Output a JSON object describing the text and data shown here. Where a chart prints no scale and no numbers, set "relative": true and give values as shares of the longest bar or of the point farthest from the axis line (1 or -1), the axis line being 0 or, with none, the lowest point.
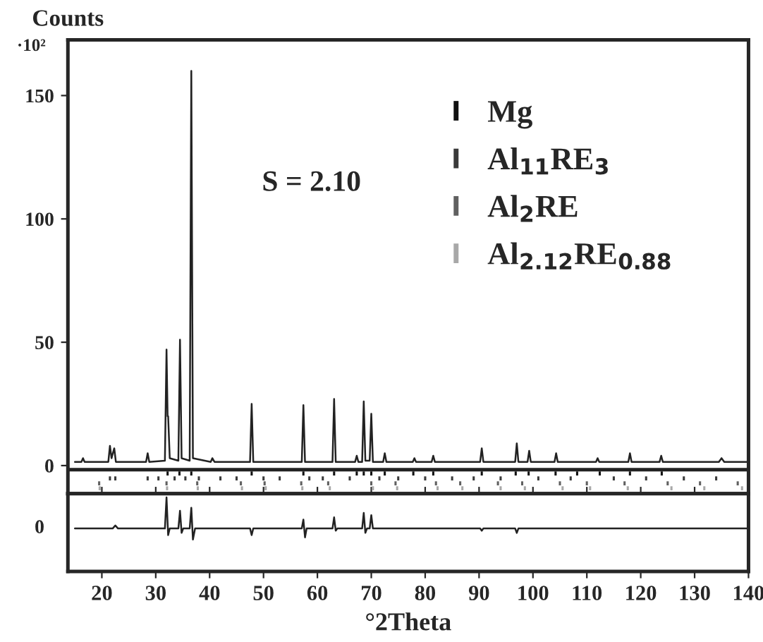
{
  "chart_data": [
    {
      "type": "line",
      "ylabel": "Counts",
      "annotations": [
        "·10²",
        "S = 2.10"
      ],
      "xlim": [
        13.7,
        140
      ],
      "xticks": [
        20,
        30,
        40,
        50,
        60,
        70,
        80,
        90,
        100,
        110,
        120,
        130,
        140
      ],
      "ylim": [
        -11.4,
        172.6
      ],
      "yticks": [
        0,
        50,
        100,
        150
      ],
      "tick_labels": "y",
      "grid": false,
      "legend": "top right",
      "ref_lines": [
        {
          "axis": "y",
          "value": -1.7,
          "color": "#222222"
        }
      ],
      "series": [
        {
          "color": "#222222",
          "x": [
            15,
            16.2,
            16.5,
            16.8,
            21.2,
            21.5,
            21.8,
            22.3,
            22.6,
            28.2,
            28.5,
            28.8,
            31.7,
            32.0,
            32.2,
            32.3,
            32.6,
            34.2,
            34.5,
            34.8,
            36.3,
            36.6,
            36.9,
            40.2,
            40.5,
            40.9,
            47.5,
            47.8,
            48.1,
            57.1,
            57.4,
            57.7,
            62.8,
            63.1,
            63.4,
            67.0,
            67.3,
            67.6,
            68.3,
            68.6,
            68.9,
            69.7,
            70.0,
            70.3,
            72.2,
            72.5,
            72.8,
            77.7,
            78.0,
            78.3,
            81.2,
            81.5,
            81.8,
            90.2,
            90.5,
            90.8,
            96.7,
            97.0,
            97.3,
            99.0,
            99.3,
            99.6,
            104.0,
            104.3,
            104.6,
            111.7,
            112.0,
            112.3,
            117.7,
            118.0,
            118.3,
            123.5,
            123.8,
            124.1,
            134.5,
            135.0,
            135.5,
            140
          ],
          "values": [
            1.5,
            1.5,
            3,
            1.5,
            1.5,
            8,
            3,
            7,
            1.5,
            1.5,
            5,
            1.5,
            2,
            47,
            20,
            20,
            3,
            2,
            51,
            3,
            2,
            160,
            3,
            1.5,
            3,
            1.5,
            1.5,
            25,
            1.5,
            1.5,
            24.5,
            1.5,
            1.5,
            27,
            1.5,
            1.5,
            4,
            1.5,
            1.5,
            26,
            2,
            2,
            21,
            1.5,
            1.5,
            5,
            1.5,
            1.5,
            3,
            1.5,
            1.5,
            4,
            1.5,
            1.5,
            7,
            1.5,
            1.5,
            9,
            1.5,
            1.5,
            6,
            1.5,
            1.5,
            5,
            1.5,
            1.5,
            3,
            1.5,
            1.5,
            5,
            1.5,
            1.5,
            4,
            1.5,
            1.5,
            3,
            1.5,
            1.5
          ]
        },
        {
          "type": "bar",
          "name": "Mg",
          "color": "#111111",
          "x": [
            32.2,
            34.4,
            36.6,
            47.8,
            57.4,
            63.1,
            67.3,
            68.6,
            70.0,
            72.5,
            77.8,
            81.5,
            90.5,
            96.8,
            99.2,
            104.2,
            108.2,
            112.4,
            118.0,
            123.9
          ],
          "base": [
            -4,
            -4,
            -4,
            -4,
            -4,
            -4,
            -4,
            -4,
            -4,
            -4,
            -4,
            -4,
            -4,
            -4,
            -4,
            -4,
            -4,
            -4,
            -4,
            -4
          ],
          "values": [
            1.6,
            1.6,
            1.6,
            1.6,
            1.6,
            1.6,
            1.6,
            1.6,
            1.6,
            1.6,
            1.6,
            1.6,
            1.6,
            1.6,
            1.6,
            1.6,
            1.6,
            1.6,
            1.6,
            1.6
          ]
        },
        {
          "type": "bar",
          "name": "Al$_{11}$RE$_{3}$",
          "color": "#3a3a3a",
          "x": [
            21.5,
            22.5,
            28.5,
            30.5,
            33.5,
            35.5,
            38.0,
            42.0,
            45.0,
            50.0,
            53.0,
            58.5,
            61.0,
            66.0,
            71.5,
            75.0,
            80.0,
            85.0,
            89.0,
            94.0,
            101.0,
            107.0,
            115.0,
            121.0,
            128.0,
            134.0
          ],
          "base": [
            -6,
            -6,
            -6,
            -6,
            -6,
            -6,
            -6,
            -6,
            -6,
            -6,
            -6,
            -6,
            -6,
            -6,
            -6,
            -6,
            -6,
            -6,
            -6,
            -6,
            -6,
            -6,
            -6,
            -6,
            -6,
            -6
          ],
          "values": [
            1.6,
            1.6,
            1.6,
            1.6,
            1.6,
            1.6,
            1.6,
            1.6,
            1.6,
            1.6,
            1.6,
            1.6,
            1.6,
            1.6,
            1.6,
            1.6,
            1.6,
            1.6,
            1.6,
            1.6,
            1.6,
            1.6,
            1.6,
            1.6,
            1.6,
            1.6
          ]
        },
        {
          "type": "bar",
          "name": "Al$_{2}$RE",
          "color": "#606060",
          "x": [
            19.5,
            32.0,
            37.7,
            45.8,
            50.2,
            57.0,
            62.0,
            70.0,
            74.5,
            82.0,
            86.5,
            93.5,
            98.0,
            105.0,
            110.0,
            117.0,
            125.0,
            131.0,
            138.0
          ],
          "base": [
            -8,
            -8,
            -8,
            -8,
            -8,
            -8,
            -8,
            -8,
            -8,
            -8,
            -8,
            -8,
            -8,
            -8,
            -8,
            -8,
            -8,
            -8,
            -8
          ],
          "values": [
            1.6,
            1.6,
            1.6,
            1.6,
            1.6,
            1.6,
            1.6,
            1.6,
            1.6,
            1.6,
            1.6,
            1.6,
            1.6,
            1.6,
            1.6,
            1.6,
            1.6,
            1.6,
            1.6
          ]
        },
        {
          "type": "bar",
          "name": "Al$_{2.12}$RE$_{0.88}$",
          "color": "#a8a8a8",
          "x": [
            19.6,
            32.1,
            37.8,
            46.0,
            50.4,
            57.2,
            62.3,
            70.3,
            74.8,
            82.3,
            86.9,
            94.0,
            98.5,
            105.5,
            110.6,
            117.6,
            125.7,
            131.8,
            138.8
          ],
          "base": [
            -10,
            -10,
            -10,
            -10,
            -10,
            -10,
            -10,
            -10,
            -10,
            -10,
            -10,
            -10,
            -10,
            -10,
            -10,
            -10,
            -10,
            -10,
            -10
          ],
          "values": [
            1.6,
            1.6,
            1.6,
            1.6,
            1.6,
            1.6,
            1.6,
            1.6,
            1.6,
            1.6,
            1.6,
            1.6,
            1.6,
            1.6,
            1.6,
            1.6,
            1.6,
            1.6,
            1.6
          ]
        }
      ]
    },
    {
      "type": "line",
      "xlabel": "°2Theta",
      "xlim": [
        13.7,
        140
      ],
      "relative": true,
      "annotations": [
        "0"
      ],
      "xticks": [
        20,
        30,
        40,
        50,
        60,
        70,
        80,
        90,
        100,
        110,
        120,
        130,
        140
      ],
      "grid": false,
      "series": [
        {
          "color": "#222222",
          "x": [
            15,
            22.0,
            22.5,
            23.0,
            31.7,
            32.0,
            32.3,
            32.6,
            34.2,
            34.5,
            34.8,
            35.1,
            36.3,
            36.6,
            36.9,
            37.3,
            47.5,
            47.8,
            48.1,
            57.1,
            57.4,
            57.7,
            58.0,
            62.8,
            63.1,
            63.4,
            63.7,
            68.3,
            68.6,
            68.9,
            69.2,
            69.7,
            70.0,
            70.3,
            90.2,
            90.5,
            90.8,
            96.7,
            97.0,
            97.3,
            140
          ],
          "values": [
            0.58,
            0.58,
            0.62,
            0.58,
            0.58,
            1,
            0.49,
            0.58,
            0.58,
            0.82,
            0.52,
            0.58,
            0.58,
            0.86,
            0.43,
            0.58,
            0.58,
            0.49,
            0.58,
            0.58,
            0.7,
            0.46,
            0.58,
            0.58,
            0.73,
            0.55,
            0.58,
            0.58,
            0.79,
            0.52,
            0.58,
            0.58,
            0.76,
            0.58,
            0.58,
            0.55,
            0.58,
            0.58,
            0.52,
            0.58,
            0.58
          ]
        }
      ]
    }
  ]
}
